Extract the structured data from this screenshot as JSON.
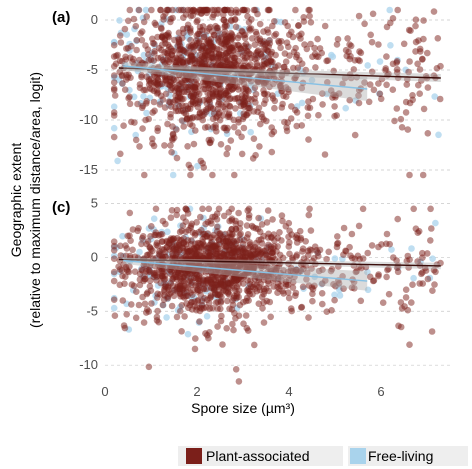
{
  "chart_data": {
    "type": "scatter",
    "xlabel": "Spore size (µm³)",
    "ylabel_line1": "Geographic extent",
    "ylabel_line2": "(relative to maximum distance/area, logit)",
    "xlim": [
      0,
      7.5
    ],
    "xticks": [
      0,
      2,
      4,
      6
    ],
    "legend": {
      "position": "bottom",
      "entries": [
        {
          "name": "Plant-associated",
          "color": "#7b1f1a"
        },
        {
          "name": "Free-living",
          "color": "#a9d3ec"
        }
      ]
    },
    "panels": [
      {
        "label": "(a)",
        "ylim": [
          -16,
          1
        ],
        "yticks": [
          0,
          -5,
          -10,
          -15
        ],
        "grid": true,
        "fits": [
          {
            "series": "Plant-associated",
            "x": [
              0.3,
              7.3
            ],
            "y": [
              -4.8,
              -5.8
            ],
            "band": [
              0.25,
              0.4
            ]
          },
          {
            "series": "Free-living",
            "x": [
              0.4,
              5.7
            ],
            "y": [
              -4.6,
              -6.9
            ],
            "band": [
              0.4,
              1.2
            ]
          }
        ],
        "point_density": {
          "x_center": 2.3,
          "x_spread": 0.9,
          "y_center": -5,
          "y_spread": 3.2,
          "plant_count": 1300,
          "free_count": 170,
          "y_floor": -15.5,
          "y_ceiling": 1
        }
      },
      {
        "label": "(c)",
        "ylim": [
          -11,
          5.5
        ],
        "yticks": [
          5,
          0,
          -5,
          -10
        ],
        "grid": true,
        "fits": [
          {
            "series": "Plant-associated",
            "x": [
              0.3,
              7.3
            ],
            "y": [
              -0.2,
              -0.8
            ],
            "band": [
              0.15,
              0.3
            ]
          },
          {
            "series": "Free-living",
            "x": [
              0.4,
              5.7
            ],
            "y": [
              -0.3,
              -2.2
            ],
            "band": [
              0.3,
              0.9
            ]
          }
        ],
        "point_density": {
          "x_center": 2.4,
          "x_spread": 0.9,
          "y_center": -0.8,
          "y_spread": 2.2,
          "plant_count": 1300,
          "free_count": 170,
          "y_floor": -11.5,
          "y_ceiling": 4.5
        }
      }
    ]
  }
}
